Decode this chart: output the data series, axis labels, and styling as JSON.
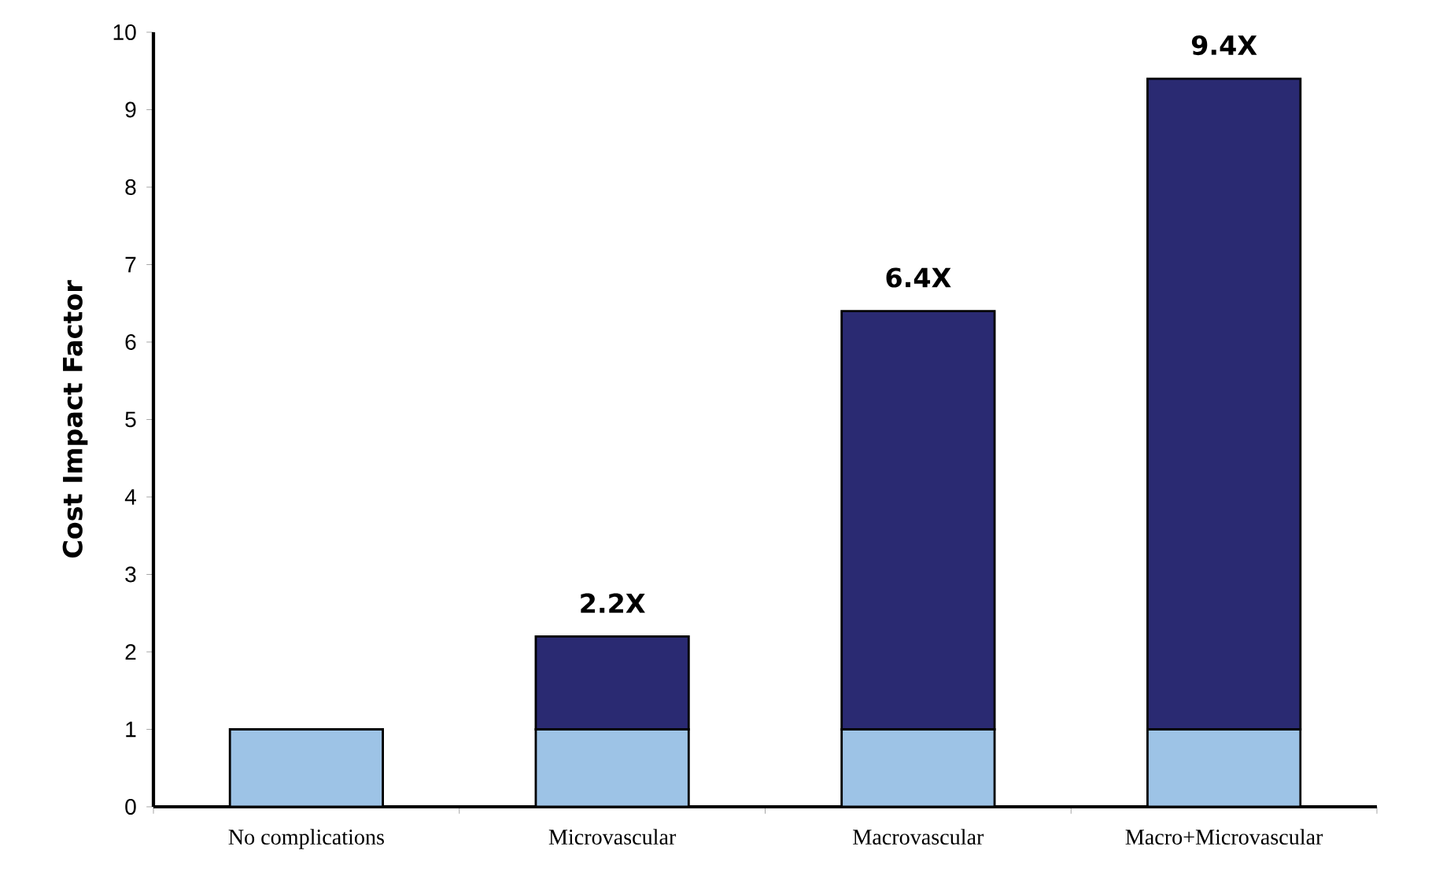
{
  "chart_data": {
    "type": "bar",
    "stacked": true,
    "ylabel": "Cost Impact Factor",
    "categories": [
      "No complications",
      "Microvascular",
      "Macrovascular",
      "Macro+Microvascular"
    ],
    "series": [
      {
        "color": "#9dc3e6",
        "values": [
          1,
          1,
          1,
          1
        ]
      },
      {
        "color": "#2a2a72",
        "values": [
          null,
          1.2,
          5.4,
          8.4
        ]
      }
    ],
    "totals": [
      null,
      "2.2X",
      "6.4X",
      "9.4X"
    ],
    "ylim": [
      0,
      10
    ],
    "yticks": [
      0,
      1,
      2,
      3,
      4,
      5,
      6,
      7,
      8,
      9,
      10
    ],
    "grid": false
  }
}
